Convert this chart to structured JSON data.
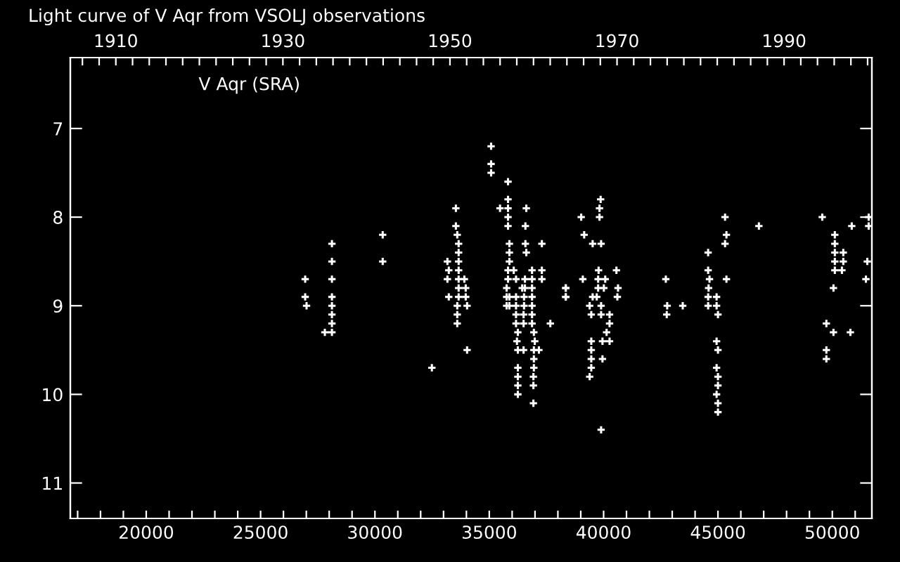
{
  "chart_data": {
    "type": "scatter",
    "title": "Light curve of V Aqr from VSOLJ observations",
    "annotations": [
      "V Aqr (SRA)"
    ],
    "marker": "cross",
    "grid": false,
    "legend": false,
    "xlim": [
      16680,
      51730
    ],
    "ylim": [
      11.4,
      6.2
    ],
    "yticks": [
      7,
      8,
      9,
      10,
      11
    ],
    "xticks": [
      {
        "value": 17000,
        "label": null
      },
      {
        "value": 18000,
        "label": null
      },
      {
        "value": 19000,
        "label": null
      },
      20000,
      {
        "value": 21000,
        "label": null
      },
      {
        "value": 22000,
        "label": null
      },
      {
        "value": 23000,
        "label": null
      },
      {
        "value": 24000,
        "label": null
      },
      25000,
      {
        "value": 26000,
        "label": null
      },
      {
        "value": 27000,
        "label": null
      },
      {
        "value": 28000,
        "label": null
      },
      {
        "value": 29000,
        "label": null
      },
      30000,
      {
        "value": 31000,
        "label": null
      },
      {
        "value": 32000,
        "label": null
      },
      {
        "value": 33000,
        "label": null
      },
      {
        "value": 34000,
        "label": null
      },
      35000,
      {
        "value": 36000,
        "label": null
      },
      {
        "value": 37000,
        "label": null
      },
      {
        "value": 38000,
        "label": null
      },
      {
        "value": 39000,
        "label": null
      },
      40000,
      {
        "value": 41000,
        "label": null
      },
      {
        "value": 42000,
        "label": null
      },
      {
        "value": 43000,
        "label": null
      },
      {
        "value": 44000,
        "label": null
      },
      45000,
      {
        "value": 46000,
        "label": null
      },
      {
        "value": 47000,
        "label": null
      },
      {
        "value": 48000,
        "label": null
      },
      {
        "value": 49000,
        "label": null
      },
      50000,
      {
        "value": 51000,
        "label": null
      }
    ],
    "x2lim": [
      1904.55,
      2000.51
    ],
    "x2ticks": [
      {
        "value": 1906,
        "label": null
      },
      {
        "value": 1908,
        "label": null
      },
      1910,
      {
        "value": 1912,
        "label": null
      },
      {
        "value": 1914,
        "label": null
      },
      {
        "value": 1916,
        "label": null
      },
      {
        "value": 1918,
        "label": null
      },
      {
        "value": 1920,
        "label": null
      },
      {
        "value": 1922,
        "label": null
      },
      {
        "value": 1924,
        "label": null
      },
      {
        "value": 1926,
        "label": null
      },
      {
        "value": 1928,
        "label": null
      },
      1930,
      {
        "value": 1932,
        "label": null
      },
      {
        "value": 1934,
        "label": null
      },
      {
        "value": 1936,
        "label": null
      },
      {
        "value": 1938,
        "label": null
      },
      {
        "value": 1940,
        "label": null
      },
      {
        "value": 1942,
        "label": null
      },
      {
        "value": 1944,
        "label": null
      },
      {
        "value": 1946,
        "label": null
      },
      {
        "value": 1948,
        "label": null
      },
      1950,
      {
        "value": 1952,
        "label": null
      },
      {
        "value": 1954,
        "label": null
      },
      {
        "value": 1956,
        "label": null
      },
      {
        "value": 1958,
        "label": null
      },
      {
        "value": 1960,
        "label": null
      },
      {
        "value": 1962,
        "label": null
      },
      {
        "value": 1964,
        "label": null
      },
      {
        "value": 1966,
        "label": null
      },
      {
        "value": 1968,
        "label": null
      },
      1970,
      {
        "value": 1972,
        "label": null
      },
      {
        "value": 1974,
        "label": null
      },
      {
        "value": 1976,
        "label": null
      },
      {
        "value": 1978,
        "label": null
      },
      {
        "value": 1980,
        "label": null
      },
      {
        "value": 1982,
        "label": null
      },
      {
        "value": 1984,
        "label": null
      },
      {
        "value": 1986,
        "label": null
      },
      {
        "value": 1988,
        "label": null
      },
      1990,
      {
        "value": 1992,
        "label": null
      },
      {
        "value": 1994,
        "label": null
      },
      {
        "value": 1996,
        "label": null
      },
      {
        "value": 1998,
        "label": null
      },
      {
        "value": 2000,
        "label": null
      }
    ],
    "series": [
      {
        "color": "#ffffff",
        "x": [
          26950,
          26950,
          27010,
          28120,
          28120,
          28120,
          28120,
          28120,
          28120,
          28120,
          28120,
          27810,
          30340,
          30340,
          32490,
          33540,
          33540,
          33600,
          33660,
          33660,
          33170,
          33660,
          33230,
          33660,
          33170,
          33660,
          33910,
          33660,
          33970,
          33230,
          33660,
          33970,
          33600,
          34030,
          33600,
          33600,
          34030,
          35080,
          35080,
          35080,
          35820,
          35820,
          35470,
          35820,
          36620,
          35820,
          35820,
          36580,
          35880,
          36580,
          37300,
          35880,
          36620,
          35880,
          35820,
          36070,
          36870,
          37300,
          35820,
          36170,
          36560,
          36870,
          37300,
          35760,
          36440,
          36560,
          36870,
          38340,
          35760,
          35880,
          36170,
          36520,
          36870,
          38340,
          35760,
          35880,
          36170,
          36520,
          36870,
          36170,
          36500,
          36870,
          36170,
          36500,
          36870,
          37670,
          36250,
          36950,
          36210,
          36990,
          36250,
          36500,
          36950,
          37170,
          36950,
          36250,
          36950,
          36250,
          36930,
          36250,
          36930,
          36250,
          36930,
          39870,
          39820,
          39020,
          39820,
          45310,
          49560,
          51590,
          46790,
          50850,
          51590,
          39150,
          45370,
          50110,
          39520,
          39890,
          45310,
          50110,
          44570,
          50110,
          50480,
          50110,
          50480,
          51530,
          39780,
          40560,
          44570,
          50110,
          50420,
          39090,
          39760,
          40070,
          42720,
          44630,
          45370,
          51470,
          38350,
          39760,
          40010,
          40630,
          44590,
          50050,
          38350,
          39520,
          39700,
          40600,
          44570,
          44940,
          39390,
          39890,
          42780,
          43460,
          44570,
          44940,
          39460,
          39890,
          40260,
          42760,
          45000,
          40260,
          49740,
          40130,
          50050,
          50790,
          39460,
          39950,
          40260,
          44940,
          39460,
          45000,
          49740,
          39460,
          39950,
          49740,
          39460,
          44940,
          39390,
          45000,
          45000,
          44940,
          45000,
          45000,
          39890
        ],
        "values": [
          8.7,
          8.9,
          9.0,
          8.3,
          8.5,
          8.7,
          8.9,
          9.0,
          9.1,
          9.2,
          9.3,
          9.3,
          8.2,
          8.5,
          9.7,
          7.9,
          8.1,
          8.2,
          8.3,
          8.4,
          8.5,
          8.5,
          8.6,
          8.6,
          8.7,
          8.7,
          8.7,
          8.8,
          8.8,
          8.9,
          8.9,
          8.9,
          9.0,
          9.0,
          9.1,
          9.2,
          9.5,
          7.2,
          7.4,
          7.5,
          7.6,
          7.8,
          7.9,
          7.9,
          7.9,
          8.0,
          8.1,
          8.1,
          8.3,
          8.3,
          8.3,
          8.4,
          8.4,
          8.5,
          8.6,
          8.6,
          8.6,
          8.6,
          8.7,
          8.7,
          8.7,
          8.7,
          8.7,
          8.8,
          8.8,
          8.8,
          8.8,
          8.8,
          8.9,
          8.9,
          8.9,
          8.9,
          8.9,
          8.9,
          9.0,
          9.0,
          9.0,
          9.0,
          9.0,
          9.1,
          9.1,
          9.1,
          9.2,
          9.2,
          9.2,
          9.2,
          9.3,
          9.3,
          9.4,
          9.4,
          9.5,
          9.5,
          9.5,
          9.5,
          9.6,
          9.7,
          9.7,
          9.8,
          9.8,
          9.9,
          9.9,
          10.0,
          10.1,
          7.8,
          7.9,
          8.0,
          8.0,
          8.0,
          8.0,
          8.0,
          8.1,
          8.1,
          8.1,
          8.2,
          8.2,
          8.2,
          8.3,
          8.3,
          8.3,
          8.3,
          8.4,
          8.4,
          8.4,
          8.5,
          8.5,
          8.5,
          8.6,
          8.6,
          8.6,
          8.6,
          8.6,
          8.7,
          8.7,
          8.7,
          8.7,
          8.7,
          8.7,
          8.7,
          8.8,
          8.8,
          8.8,
          8.8,
          8.8,
          8.8,
          8.9,
          8.9,
          8.9,
          8.9,
          8.9,
          8.9,
          9.0,
          9.0,
          9.0,
          9.0,
          9.0,
          9.0,
          9.1,
          9.1,
          9.1,
          9.1,
          9.1,
          9.2,
          9.2,
          9.3,
          9.3,
          9.3,
          9.4,
          9.4,
          9.4,
          9.4,
          9.5,
          9.5,
          9.5,
          9.6,
          9.6,
          9.6,
          9.7,
          9.7,
          9.8,
          9.8,
          9.9,
          10.0,
          10.1,
          10.2,
          10.4
        ]
      }
    ]
  }
}
